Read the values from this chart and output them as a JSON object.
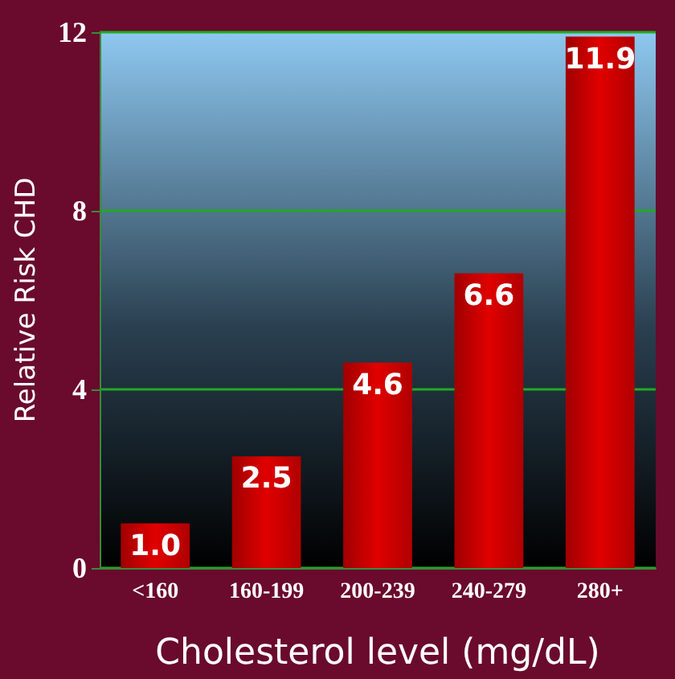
{
  "chart_data": {
    "type": "bar",
    "xlabel": "Cholesterol level (mg/dL)",
    "ylabel": "Relative Risk CHD",
    "categories": [
      "<160",
      "160-199",
      "200-239",
      "240-279",
      "280+"
    ],
    "values": [
      1.0,
      2.5,
      4.6,
      6.6,
      11.9
    ],
    "value_labels": [
      "1.0",
      "2.5",
      "4.6",
      "6.6",
      "11.9"
    ],
    "color": "#e00000",
    "ylim": [
      0,
      12
    ],
    "yticks": [
      0,
      4,
      8,
      12
    ],
    "grid": "y"
  }
}
